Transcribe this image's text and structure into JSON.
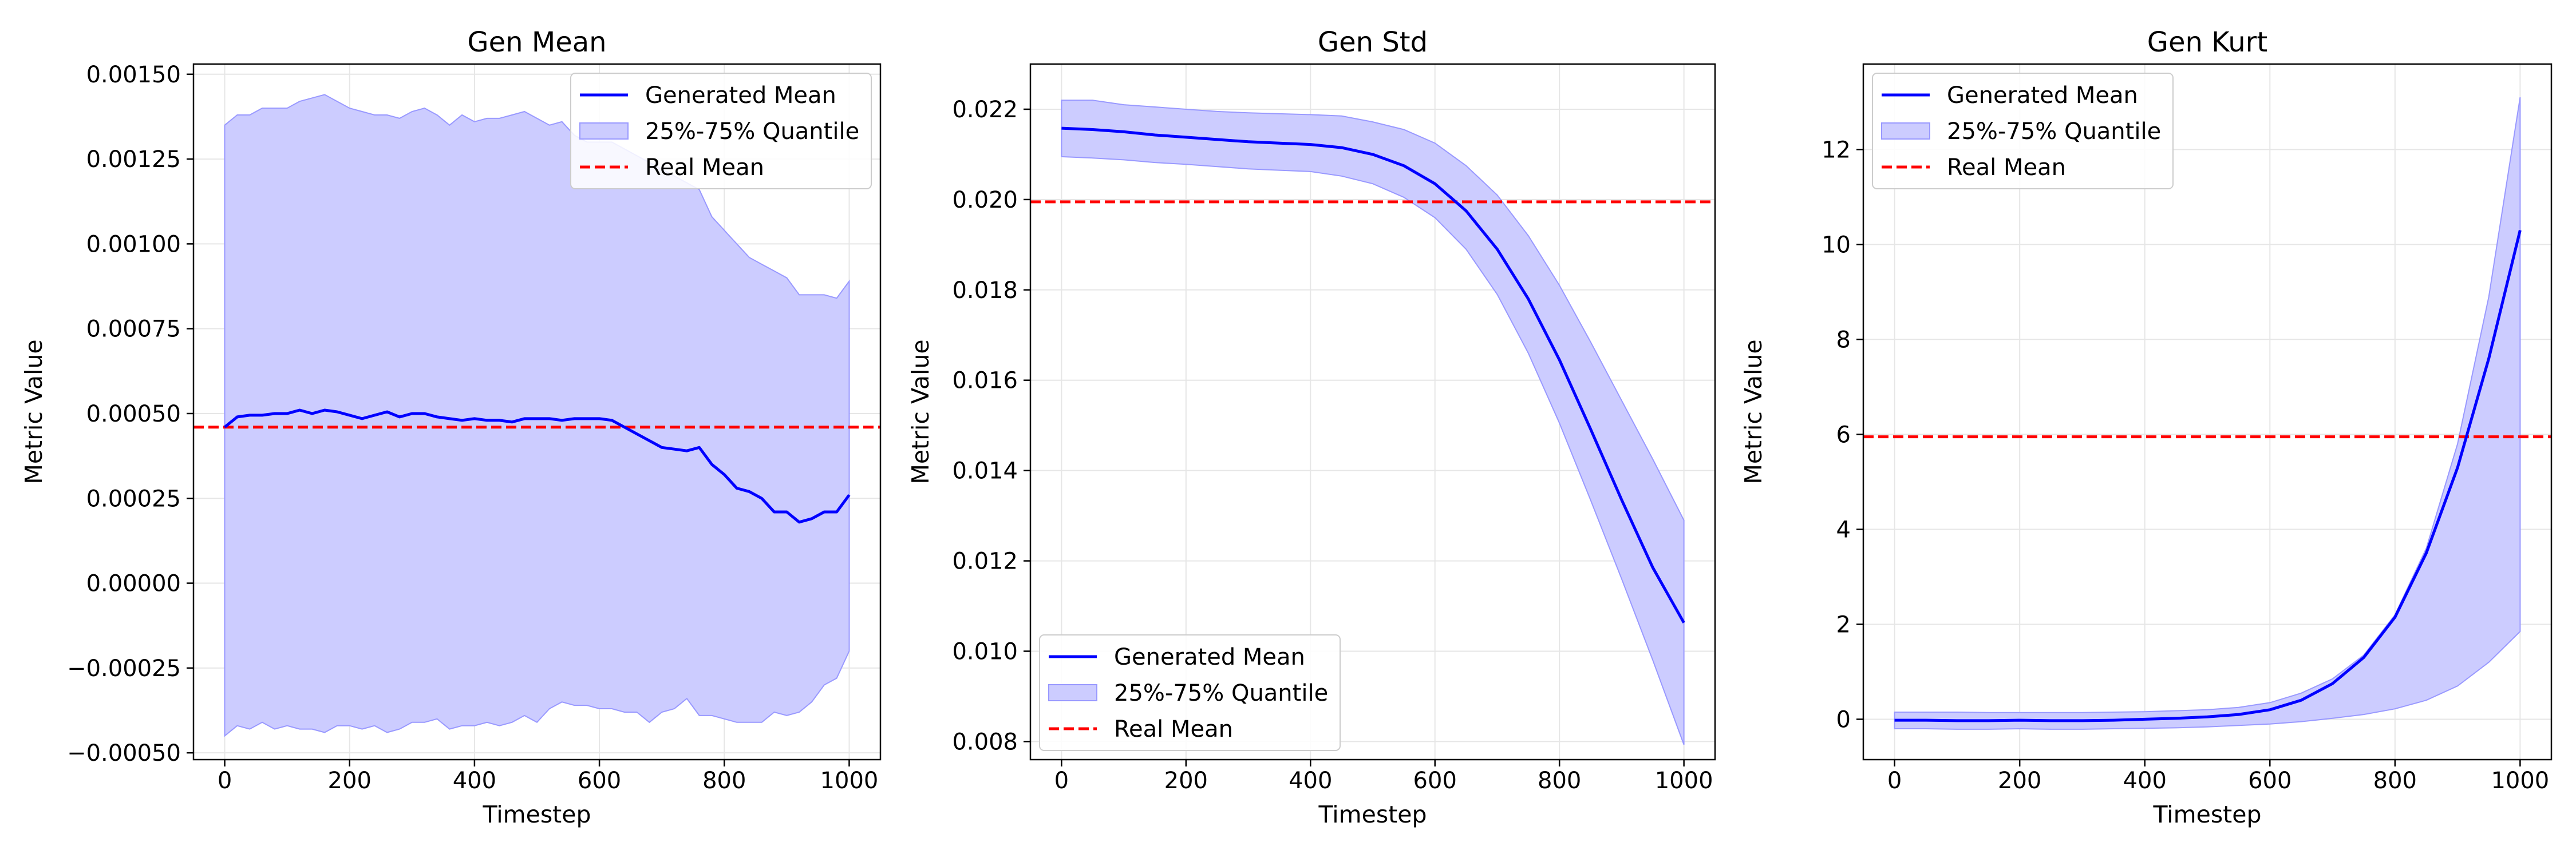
{
  "colors": {
    "line": "#0000ff",
    "band_fill": "#ccccff",
    "band_edge": "#9999ff",
    "real": "#ff0000",
    "grid": "#e6e6e6",
    "axis": "#000000"
  },
  "chart_data": [
    {
      "type": "line",
      "title": "Gen Mean",
      "xlabel": "Timestep",
      "ylabel": "Metric Value",
      "xlim": [
        -50,
        1050
      ],
      "ylim": [
        -0.00052,
        0.00153
      ],
      "xticks": [
        0,
        200,
        400,
        600,
        800,
        1000
      ],
      "xtick_labels": [
        "0",
        "200",
        "400",
        "600",
        "800",
        "1000"
      ],
      "yticks": [
        -0.0005,
        -0.00025,
        0,
        0.00025,
        0.0005,
        0.00075,
        0.001,
        0.00125,
        0.0015
      ],
      "ytick_labels": [
        "−0.00050",
        "−0.00025",
        "0.00000",
        "0.00025",
        "0.00050",
        "0.00075",
        "0.00100",
        "0.00125",
        "0.00150"
      ],
      "grid": true,
      "legend_position": "top-right",
      "legend": [
        "Generated Mean",
        "25%-75% Quantile",
        "Real Mean"
      ],
      "x": [
        0,
        20,
        40,
        60,
        80,
        100,
        120,
        140,
        160,
        180,
        200,
        220,
        240,
        260,
        280,
        300,
        320,
        340,
        360,
        380,
        400,
        420,
        440,
        460,
        480,
        500,
        520,
        540,
        560,
        580,
        600,
        620,
        640,
        660,
        680,
        700,
        720,
        740,
        760,
        780,
        800,
        820,
        840,
        860,
        880,
        900,
        920,
        940,
        960,
        980,
        1000
      ],
      "series": [
        {
          "name": "Generated Mean",
          "values": [
            0.00046,
            0.00049,
            0.000495,
            0.000495,
            0.0005,
            0.0005,
            0.00051,
            0.0005,
            0.00051,
            0.000505,
            0.000495,
            0.000485,
            0.000495,
            0.000505,
            0.00049,
            0.0005,
            0.0005,
            0.00049,
            0.000485,
            0.00048,
            0.000485,
            0.00048,
            0.00048,
            0.000475,
            0.000485,
            0.000485,
            0.000485,
            0.00048,
            0.000485,
            0.000485,
            0.000485,
            0.00048,
            0.00046,
            0.00044,
            0.00042,
            0.0004,
            0.000395,
            0.00039,
            0.0004,
            0.00035,
            0.00032,
            0.00028,
            0.00027,
            0.00025,
            0.00021,
            0.00021,
            0.00018,
            0.00019,
            0.00021,
            0.00021,
            0.00026
          ]
        },
        {
          "name": "25%-75% Quantile",
          "upper": [
            0.00135,
            0.00138,
            0.00138,
            0.0014,
            0.0014,
            0.0014,
            0.00142,
            0.00143,
            0.00144,
            0.00142,
            0.0014,
            0.00139,
            0.00138,
            0.00138,
            0.00137,
            0.00139,
            0.0014,
            0.00138,
            0.00135,
            0.00138,
            0.00136,
            0.00137,
            0.00137,
            0.00138,
            0.00139,
            0.00137,
            0.00135,
            0.00136,
            0.00132,
            0.0013,
            0.0013,
            0.0013,
            0.00128,
            0.00126,
            0.00124,
            0.00122,
            0.0012,
            0.00118,
            0.00116,
            0.00108,
            0.00104,
            0.001,
            0.00096,
            0.00094,
            0.00092,
            0.0009,
            0.00085,
            0.00085,
            0.00085,
            0.00084,
            0.00089
          ],
          "lower": [
            -0.00045,
            -0.00042,
            -0.00043,
            -0.00041,
            -0.00043,
            -0.00042,
            -0.00043,
            -0.00043,
            -0.00044,
            -0.00042,
            -0.00042,
            -0.00043,
            -0.00042,
            -0.00044,
            -0.00043,
            -0.00041,
            -0.00041,
            -0.0004,
            -0.00043,
            -0.00042,
            -0.00042,
            -0.00041,
            -0.00042,
            -0.00041,
            -0.00039,
            -0.00041,
            -0.00037,
            -0.00035,
            -0.00036,
            -0.00036,
            -0.00037,
            -0.00037,
            -0.00038,
            -0.00038,
            -0.00041,
            -0.00038,
            -0.00037,
            -0.00034,
            -0.00039,
            -0.00039,
            -0.0004,
            -0.00041,
            -0.00041,
            -0.00041,
            -0.00038,
            -0.00039,
            -0.00038,
            -0.00035,
            -0.0003,
            -0.00028,
            -0.0002
          ]
        },
        {
          "name": "Real Mean",
          "value": 0.00046
        }
      ]
    },
    {
      "type": "line",
      "title": "Gen Std",
      "xlabel": "Timestep",
      "ylabel": "Metric Value",
      "xlim": [
        -50,
        1050
      ],
      "ylim": [
        0.0076,
        0.023
      ],
      "xticks": [
        0,
        200,
        400,
        600,
        800,
        1000
      ],
      "xtick_labels": [
        "0",
        "200",
        "400",
        "600",
        "800",
        "1000"
      ],
      "yticks": [
        0.008,
        0.01,
        0.012,
        0.014,
        0.016,
        0.018,
        0.02,
        0.022
      ],
      "ytick_labels": [
        "0.008",
        "0.010",
        "0.012",
        "0.014",
        "0.016",
        "0.018",
        "0.020",
        "0.022"
      ],
      "grid": true,
      "legend_position": "bottom-left",
      "legend": [
        "Generated Mean",
        "25%-75% Quantile",
        "Real Mean"
      ],
      "x": [
        0,
        50,
        100,
        150,
        200,
        250,
        300,
        350,
        400,
        450,
        500,
        550,
        600,
        650,
        700,
        750,
        800,
        850,
        900,
        950,
        1000
      ],
      "series": [
        {
          "name": "Generated Mean",
          "values": [
            0.02158,
            0.02155,
            0.0215,
            0.02143,
            0.02138,
            0.02133,
            0.02128,
            0.02125,
            0.02122,
            0.02115,
            0.021,
            0.02075,
            0.02035,
            0.01975,
            0.0189,
            0.0178,
            0.01645,
            0.01492,
            0.01335,
            0.01185,
            0.01063
          ]
        },
        {
          "name": "25%-75% Quantile",
          "upper": [
            0.0222,
            0.0222,
            0.0221,
            0.02205,
            0.022,
            0.02195,
            0.02192,
            0.0219,
            0.02188,
            0.02185,
            0.02172,
            0.02155,
            0.02125,
            0.02075,
            0.0201,
            0.0192,
            0.0181,
            0.01685,
            0.01555,
            0.01425,
            0.0129
          ],
          "lower": [
            0.02095,
            0.02092,
            0.02088,
            0.02082,
            0.02078,
            0.02073,
            0.02068,
            0.02065,
            0.02062,
            0.02052,
            0.02035,
            0.02005,
            0.0196,
            0.0189,
            0.0179,
            0.0166,
            0.01505,
            0.01335,
            0.0116,
            0.0098,
            0.00793
          ]
        },
        {
          "name": "Real Mean",
          "value": 0.01995
        }
      ]
    },
    {
      "type": "line",
      "title": "Gen Kurt",
      "xlabel": "Timestep",
      "ylabel": "Metric Value",
      "xlim": [
        -50,
        1050
      ],
      "ylim": [
        -0.85,
        13.8
      ],
      "xticks": [
        0,
        200,
        400,
        600,
        800,
        1000
      ],
      "xtick_labels": [
        "0",
        "200",
        "400",
        "600",
        "800",
        "1000"
      ],
      "yticks": [
        0,
        2,
        4,
        6,
        8,
        10,
        12
      ],
      "ytick_labels": [
        "0",
        "2",
        "4",
        "6",
        "8",
        "10",
        "12"
      ],
      "grid": true,
      "legend_position": "top-left",
      "legend": [
        "Generated Mean",
        "25%-75% Quantile",
        "Real Mean"
      ],
      "x": [
        0,
        50,
        100,
        150,
        200,
        250,
        300,
        350,
        400,
        450,
        500,
        550,
        600,
        650,
        700,
        750,
        800,
        850,
        900,
        950,
        1000
      ],
      "series": [
        {
          "name": "Generated Mean",
          "values": [
            -0.02,
            -0.02,
            -0.03,
            -0.03,
            -0.02,
            -0.03,
            -0.03,
            -0.02,
            0.0,
            0.02,
            0.05,
            0.1,
            0.2,
            0.4,
            0.75,
            1.3,
            2.15,
            3.5,
            5.3,
            7.6,
            10.3
          ]
        },
        {
          "name": "25%-75% Quantile",
          "upper": [
            0.15,
            0.15,
            0.15,
            0.14,
            0.14,
            0.14,
            0.14,
            0.15,
            0.16,
            0.18,
            0.2,
            0.25,
            0.35,
            0.55,
            0.85,
            1.35,
            2.2,
            3.6,
            5.8,
            8.9,
            13.1
          ],
          "lower": [
            -0.2,
            -0.2,
            -0.21,
            -0.21,
            -0.2,
            -0.21,
            -0.21,
            -0.2,
            -0.19,
            -0.18,
            -0.16,
            -0.13,
            -0.1,
            -0.05,
            0.02,
            0.1,
            0.22,
            0.4,
            0.7,
            1.2,
            1.85
          ]
        },
        {
          "name": "Real Mean",
          "value": 5.95
        }
      ]
    }
  ]
}
